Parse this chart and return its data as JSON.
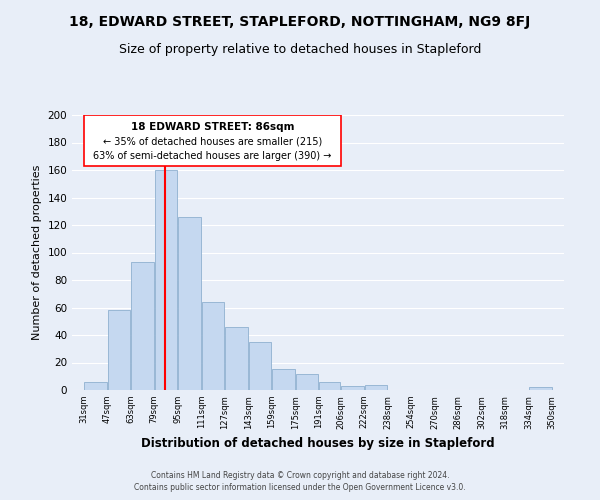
{
  "title": "18, EDWARD STREET, STAPLEFORD, NOTTINGHAM, NG9 8FJ",
  "subtitle": "Size of property relative to detached houses in Stapleford",
  "xlabel": "Distribution of detached houses by size in Stapleford",
  "ylabel": "Number of detached properties",
  "bar_left_edges": [
    31,
    47,
    63,
    79,
    95,
    111,
    127,
    143,
    159,
    175,
    191,
    206,
    222,
    238,
    254,
    270,
    286,
    302,
    318,
    334
  ],
  "bar_heights": [
    6,
    58,
    93,
    160,
    126,
    64,
    46,
    35,
    15,
    12,
    6,
    3,
    4,
    0,
    0,
    0,
    0,
    0,
    0,
    2
  ],
  "bar_widths": [
    16,
    16,
    16,
    16,
    16,
    16,
    16,
    16,
    16,
    16,
    15,
    16,
    16,
    16,
    16,
    16,
    16,
    16,
    16,
    16
  ],
  "tick_labels": [
    "31sqm",
    "47sqm",
    "63sqm",
    "79sqm",
    "95sqm",
    "111sqm",
    "127sqm",
    "143sqm",
    "159sqm",
    "175sqm",
    "191sqm",
    "206sqm",
    "222sqm",
    "238sqm",
    "254sqm",
    "270sqm",
    "286sqm",
    "302sqm",
    "318sqm",
    "334sqm",
    "350sqm"
  ],
  "tick_positions": [
    31,
    47,
    63,
    79,
    95,
    111,
    127,
    143,
    159,
    175,
    191,
    206,
    222,
    238,
    254,
    270,
    286,
    302,
    318,
    334,
    350
  ],
  "bar_color": "#c5d8f0",
  "bar_edge_color": "#8fb0d0",
  "redline_x": 86,
  "annotation_title": "18 EDWARD STREET: 86sqm",
  "annotation_line1": "← 35% of detached houses are smaller (215)",
  "annotation_line2": "63% of semi-detached houses are larger (390) →",
  "ylim": [
    0,
    200
  ],
  "xlim": [
    23,
    358
  ],
  "yticks": [
    0,
    20,
    40,
    60,
    80,
    100,
    120,
    140,
    160,
    180,
    200
  ],
  "footer_line1": "Contains HM Land Registry data © Crown copyright and database right 2024.",
  "footer_line2": "Contains public sector information licensed under the Open Government Licence v3.0.",
  "background_color": "#e8eef8",
  "plot_bg_color": "#e8eef8",
  "grid_color": "#ffffff",
  "title_fontsize": 10,
  "subtitle_fontsize": 9
}
